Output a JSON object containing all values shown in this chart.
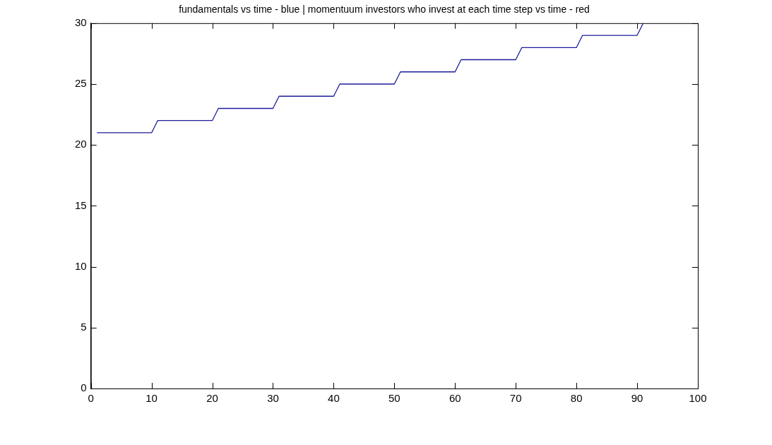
{
  "chart_data": {
    "type": "line",
    "title": "fundamentals vs time - blue | momentuum investors who invest at each time step vs time - red",
    "x": [
      1,
      10,
      11,
      20,
      21,
      30,
      31,
      40,
      41,
      50,
      51,
      60,
      61,
      70,
      71,
      80,
      81,
      90,
      91
    ],
    "series": [
      {
        "color": "#1c1c9c",
        "values": [
          21,
          21,
          22,
          22,
          23,
          23,
          24,
          24,
          25,
          25,
          26,
          26,
          27,
          27,
          28,
          28,
          29,
          29,
          30
        ]
      }
    ],
    "xlim": [
      0,
      100
    ],
    "ylim": [
      0,
      30
    ],
    "xticks": [
      0,
      10,
      20,
      30,
      40,
      50,
      60,
      70,
      80,
      90,
      100
    ],
    "yticks": [
      0,
      5,
      10,
      15,
      20,
      25,
      30
    ],
    "grid": false,
    "legend": false
  }
}
